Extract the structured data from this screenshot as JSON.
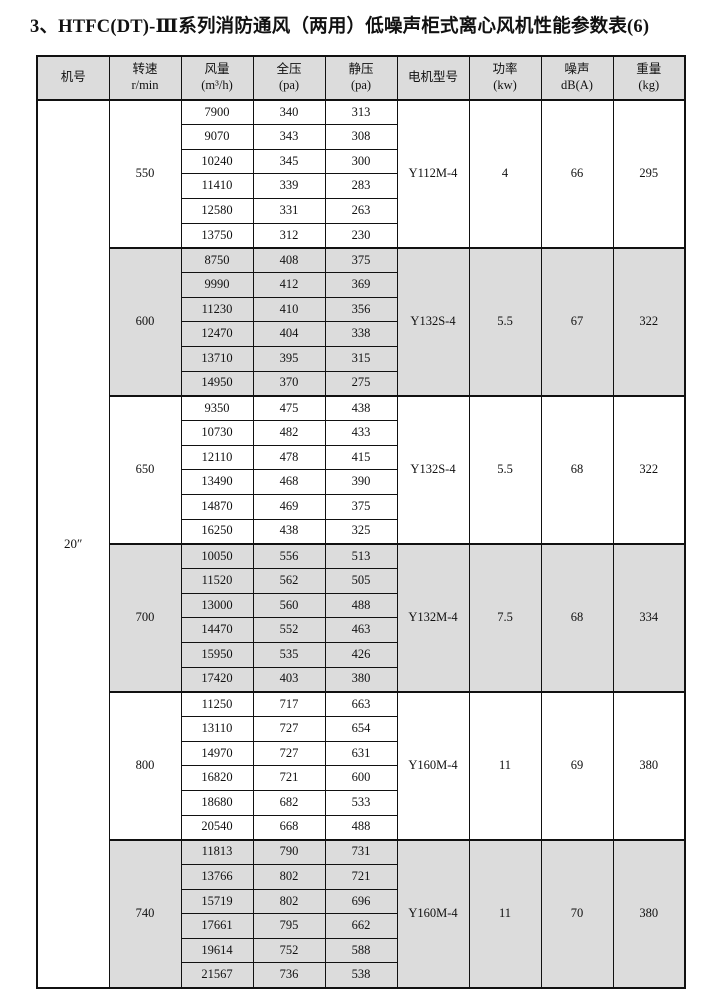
{
  "title": "3、HTFC(DT)-Ⅲ系列消防通风（两用）低噪声柜式离心风机性能参数表(6)",
  "colors": {
    "shade": "#dcdcdc",
    "border": "#111111",
    "page_background": "#ffffff",
    "text": "#111111"
  },
  "table": {
    "model_number": "20″",
    "headers": [
      {
        "line1": "机号",
        "line2": ""
      },
      {
        "line1": "转速",
        "line2": "r/min"
      },
      {
        "line1": "风量",
        "line2": "(m³/h)"
      },
      {
        "line1": "全压",
        "line2": "(pa)"
      },
      {
        "line1": "静压",
        "line2": "(pa)"
      },
      {
        "line1": "电机型号",
        "line2": ""
      },
      {
        "line1": "功率",
        "line2": "(kw)"
      },
      {
        "line1": "噪声",
        "line2": "dB(A)"
      },
      {
        "line1": "重量",
        "line2": "(kg)"
      }
    ],
    "groups": [
      {
        "speed": "550",
        "motor": "Y112M-4",
        "power": "4",
        "noise": "66",
        "weight": "295",
        "shaded": false,
        "rows": [
          [
            "7900",
            "340",
            "313"
          ],
          [
            "9070",
            "343",
            "308"
          ],
          [
            "10240",
            "345",
            "300"
          ],
          [
            "11410",
            "339",
            "283"
          ],
          [
            "12580",
            "331",
            "263"
          ],
          [
            "13750",
            "312",
            "230"
          ]
        ]
      },
      {
        "speed": "600",
        "motor": "Y132S-4",
        "power": "5.5",
        "noise": "67",
        "weight": "322",
        "shaded": true,
        "rows": [
          [
            "8750",
            "408",
            "375"
          ],
          [
            "9990",
            "412",
            "369"
          ],
          [
            "11230",
            "410",
            "356"
          ],
          [
            "12470",
            "404",
            "338"
          ],
          [
            "13710",
            "395",
            "315"
          ],
          [
            "14950",
            "370",
            "275"
          ]
        ]
      },
      {
        "speed": "650",
        "motor": "Y132S-4",
        "power": "5.5",
        "noise": "68",
        "weight": "322",
        "shaded": false,
        "rows": [
          [
            "9350",
            "475",
            "438"
          ],
          [
            "10730",
            "482",
            "433"
          ],
          [
            "12110",
            "478",
            "415"
          ],
          [
            "13490",
            "468",
            "390"
          ],
          [
            "14870",
            "469",
            "375"
          ],
          [
            "16250",
            "438",
            "325"
          ]
        ]
      },
      {
        "speed": "700",
        "motor": "Y132M-4",
        "power": "7.5",
        "noise": "68",
        "weight": "334",
        "shaded": true,
        "rows": [
          [
            "10050",
            "556",
            "513"
          ],
          [
            "11520",
            "562",
            "505"
          ],
          [
            "13000",
            "560",
            "488"
          ],
          [
            "14470",
            "552",
            "463"
          ],
          [
            "15950",
            "535",
            "426"
          ],
          [
            "17420",
            "403",
            "380"
          ]
        ]
      },
      {
        "speed": "800",
        "motor": "Y160M-4",
        "power": "11",
        "noise": "69",
        "weight": "380",
        "shaded": false,
        "rows": [
          [
            "11250",
            "717",
            "663"
          ],
          [
            "13110",
            "727",
            "654"
          ],
          [
            "14970",
            "727",
            "631"
          ],
          [
            "16820",
            "721",
            "600"
          ],
          [
            "18680",
            "682",
            "533"
          ],
          [
            "20540",
            "668",
            "488"
          ]
        ]
      },
      {
        "speed": "740",
        "motor": "Y160M-4",
        "power": "11",
        "noise": "70",
        "weight": "380",
        "shaded": true,
        "rows": [
          [
            "11813",
            "790",
            "731"
          ],
          [
            "13766",
            "802",
            "721"
          ],
          [
            "15719",
            "802",
            "696"
          ],
          [
            "17661",
            "795",
            "662"
          ],
          [
            "19614",
            "752",
            "588"
          ],
          [
            "21567",
            "736",
            "538"
          ]
        ]
      }
    ]
  }
}
